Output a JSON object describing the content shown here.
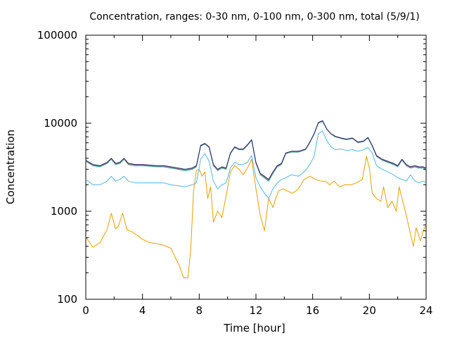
{
  "chart_data": {
    "type": "line",
    "title": "Concentration, ranges: 0-30 nm, 0-100 nm, 0-300 nm, total (5/9/1)",
    "xlabel": "Time [hour]",
    "ylabel": "Concentration",
    "xlim": [
      0,
      24
    ],
    "ylim": [
      100,
      100000
    ],
    "yscale": "log",
    "grid": false,
    "legend": "none",
    "x_ticks": [
      0,
      4,
      8,
      12,
      16,
      20,
      24
    ],
    "x_tick_labels": [
      "0",
      "4",
      "8",
      "12",
      "16",
      "20",
      "24"
    ],
    "y_ticks": [
      100,
      1000,
      10000,
      100000
    ],
    "y_tick_labels": [
      "100",
      "1000",
      "10000",
      "100000"
    ],
    "series": [
      {
        "color": "#e69f00",
        "x": [
          0,
          0.5,
          1,
          1.5,
          1.8,
          2.1,
          2.3,
          2.6,
          2.9,
          3.3,
          4,
          4.5,
          5,
          5.5,
          6,
          6.3,
          6.6,
          6.9,
          7.2,
          7.4,
          7.6,
          7.8,
          8,
          8.2,
          8.4,
          8.6,
          8.8,
          9,
          9.3,
          9.6,
          9.9,
          10.2,
          10.5,
          10.8,
          11.1,
          11.4,
          11.7,
          12,
          12.3,
          12.6,
          12.9,
          13.2,
          13.4,
          13.6,
          13.9,
          14.2,
          14.6,
          15,
          15.4,
          15.8,
          16.2,
          16.6,
          16.9,
          17.2,
          17.5,
          17.9,
          18.3,
          18.7,
          19.1,
          19.5,
          19.8,
          20,
          20.2,
          20.5,
          20.8,
          21,
          21.3,
          21.6,
          21.9,
          22.1,
          22.3,
          22.6,
          22.9,
          23.1,
          23.3,
          23.6,
          23.8,
          24
        ],
        "y": [
          510,
          390,
          440,
          620,
          950,
          630,
          680,
          950,
          620,
          580,
          480,
          440,
          430,
          410,
          380,
          300,
          240,
          175,
          175,
          360,
          1700,
          2900,
          3000,
          2500,
          2800,
          1400,
          1900,
          750,
          1000,
          850,
          1500,
          2800,
          3300,
          3000,
          2600,
          3100,
          3900,
          1800,
          900,
          600,
          1400,
          1100,
          1400,
          1700,
          1800,
          1700,
          1600,
          1800,
          2300,
          2500,
          2300,
          2200,
          2200,
          2000,
          2200,
          1900,
          2000,
          2000,
          2100,
          2300,
          4200,
          3100,
          1600,
          1400,
          1300,
          1900,
          1100,
          1300,
          1000,
          1900,
          1400,
          900,
          550,
          400,
          650,
          460,
          600,
          700
        ]
      },
      {
        "color": "#56b4e9",
        "x": [
          0,
          0.5,
          1,
          1.5,
          1.8,
          2.1,
          2.4,
          2.7,
          3,
          3.5,
          4,
          4.5,
          5,
          5.5,
          6,
          6.5,
          7,
          7.5,
          7.8,
          8.1,
          8.4,
          8.7,
          9,
          9.3,
          9.6,
          9.9,
          10.2,
          10.5,
          10.8,
          11.1,
          11.4,
          11.7,
          12,
          12.3,
          12.6,
          12.9,
          13.2,
          13.5,
          13.8,
          14.1,
          14.5,
          15,
          15.5,
          15.8,
          16.1,
          16.4,
          16.7,
          17,
          17.3,
          17.6,
          18,
          18.4,
          18.8,
          19.2,
          19.6,
          19.9,
          20.2,
          20.5,
          20.9,
          21.3,
          21.7,
          22,
          22.3,
          22.6,
          22.9,
          23.2,
          23.5,
          23.8,
          24
        ],
        "y": [
          2300,
          2000,
          2000,
          2200,
          2500,
          2200,
          2300,
          2500,
          2200,
          2100,
          2100,
          2100,
          2100,
          2100,
          2000,
          1950,
          1900,
          2000,
          2100,
          3900,
          4500,
          3700,
          2200,
          1800,
          2000,
          2100,
          3100,
          3600,
          3400,
          3400,
          3600,
          4300,
          2400,
          1900,
          1600,
          1400,
          1800,
          2100,
          2300,
          2400,
          2600,
          2500,
          2900,
          3400,
          4200,
          7600,
          8200,
          6300,
          5400,
          5000,
          5100,
          4900,
          5000,
          4800,
          5000,
          5300,
          4600,
          3300,
          3000,
          2800,
          2600,
          2400,
          2300,
          2200,
          2600,
          2200,
          2100,
          2200,
          2100
        ]
      },
      {
        "color": "#009e73",
        "x": [
          0,
          0.5,
          1,
          1.5,
          1.8,
          2.1,
          2.4,
          2.7,
          3,
          3.5,
          4,
          4.5,
          5,
          5.5,
          6,
          6.5,
          7,
          7.5,
          7.8,
          8.1,
          8.4,
          8.7,
          9,
          9.3,
          9.6,
          9.9,
          10.2,
          10.5,
          10.8,
          11.1,
          11.4,
          11.7,
          12,
          12.3,
          12.6,
          12.9,
          13.2,
          13.5,
          13.8,
          14.1,
          14.5,
          15,
          15.5,
          15.8,
          16.1,
          16.4,
          16.7,
          17,
          17.3,
          17.6,
          18,
          18.4,
          18.8,
          19.2,
          19.6,
          19.9,
          20.2,
          20.5,
          20.9,
          21.3,
          21.7,
          22,
          22.3,
          22.6,
          22.9,
          23.2,
          23.5,
          23.8,
          24
        ],
        "y": [
          3700,
          3300,
          3200,
          3500,
          3900,
          3400,
          3500,
          3900,
          3400,
          3300,
          3300,
          3250,
          3200,
          3200,
          3100,
          3000,
          2900,
          3000,
          3200,
          5500,
          5800,
          5300,
          3300,
          2900,
          3100,
          3000,
          4500,
          5300,
          5000,
          5000,
          5600,
          6400,
          3500,
          2600,
          2400,
          2200,
          2700,
          3200,
          3400,
          4500,
          4700,
          4700,
          5000,
          6000,
          7500,
          10000,
          10500,
          8500,
          7500,
          7000,
          6700,
          6500,
          6700,
          6000,
          6200,
          6800,
          5500,
          4200,
          3800,
          3600,
          3400,
          3200,
          3800,
          3300,
          3100,
          3200,
          3100,
          3100,
          3000
        ]
      },
      {
        "color": "#cc79a7",
        "x": [
          0,
          0.5,
          1,
          1.5,
          1.8,
          2.1,
          2.4,
          2.7,
          3,
          3.5,
          4,
          4.5,
          5,
          5.5,
          6,
          6.5,
          7,
          7.5,
          7.8,
          8.1,
          8.4,
          8.7,
          9,
          9.3,
          9.6,
          9.9,
          10.2,
          10.5,
          10.8,
          11.1,
          11.4,
          11.7,
          12,
          12.3,
          12.6,
          12.9,
          13.2,
          13.5,
          13.8,
          14.1,
          14.5,
          15,
          15.5,
          15.8,
          16.1,
          16.4,
          16.7,
          17,
          17.3,
          17.6,
          18,
          18.4,
          18.8,
          19.2,
          19.6,
          19.9,
          20.2,
          20.5,
          20.9,
          21.3,
          21.7,
          22,
          22.3,
          22.6,
          22.9,
          23.2,
          23.5,
          23.8,
          24
        ],
        "y": [
          3750,
          3350,
          3250,
          3550,
          3950,
          3450,
          3550,
          3950,
          3450,
          3350,
          3350,
          3300,
          3250,
          3250,
          3150,
          3050,
          2950,
          3050,
          3250,
          5550,
          5850,
          5350,
          3350,
          2950,
          3150,
          3050,
          4550,
          5350,
          5050,
          5050,
          5650,
          6450,
          3550,
          2650,
          2450,
          2250,
          2750,
          3250,
          3450,
          4550,
          4750,
          4750,
          5050,
          6050,
          7550,
          10100,
          10600,
          8550,
          7550,
          7050,
          6750,
          6550,
          6750,
          6050,
          6250,
          6850,
          5550,
          4250,
          3850,
          3650,
          3450,
          3250,
          3850,
          3350,
          3150,
          3250,
          3150,
          3150,
          3050
        ]
      },
      {
        "color": "#1b2a5e",
        "x": [
          0,
          0.5,
          1,
          1.5,
          1.8,
          2.1,
          2.4,
          2.7,
          3,
          3.5,
          4,
          4.5,
          5,
          5.5,
          6,
          6.5,
          7,
          7.5,
          7.8,
          8.1,
          8.4,
          8.7,
          9,
          9.3,
          9.6,
          9.9,
          10.2,
          10.5,
          10.8,
          11.1,
          11.4,
          11.7,
          12,
          12.3,
          12.6,
          12.9,
          13.2,
          13.5,
          13.8,
          14.1,
          14.5,
          15,
          15.5,
          15.8,
          16.1,
          16.4,
          16.7,
          17,
          17.3,
          17.6,
          18,
          18.4,
          18.8,
          19.2,
          19.6,
          19.9,
          20.2,
          20.5,
          20.9,
          21.3,
          21.7,
          22,
          22.3,
          22.6,
          22.9,
          23.2,
          23.5,
          23.8,
          24
        ],
        "y": [
          3800,
          3400,
          3300,
          3600,
          4000,
          3500,
          3600,
          4000,
          3500,
          3400,
          3400,
          3350,
          3300,
          3300,
          3200,
          3100,
          3000,
          3100,
          3300,
          5600,
          5900,
          5400,
          3400,
          3000,
          3200,
          3100,
          4600,
          5400,
          5100,
          5100,
          5700,
          6500,
          3600,
          2700,
          2500,
          2300,
          2800,
          3300,
          3500,
          4600,
          4800,
          4800,
          5100,
          6100,
          7600,
          10200,
          10700,
          8600,
          7600,
          7100,
          6800,
          6600,
          6800,
          6100,
          6300,
          6900,
          5600,
          4300,
          3900,
          3700,
          3500,
          3300,
          3900,
          3400,
          3200,
          3300,
          3200,
          3200,
          3100
        ]
      }
    ]
  }
}
